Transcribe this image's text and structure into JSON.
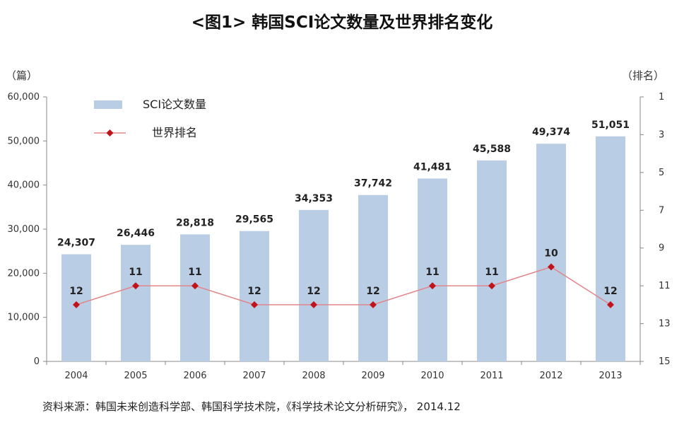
{
  "chart_data": {
    "type": "bar",
    "title": "<图1> 韩国SCI论文数量及世界排名变化",
    "y_left_unit": "（篇）",
    "y_right_unit": "（排名）",
    "categories": [
      "2004",
      "2005",
      "2006",
      "2007",
      "2008",
      "2009",
      "2010",
      "2011",
      "2012",
      "2013"
    ],
    "series": [
      {
        "name": "SCI论文数量",
        "type": "bar",
        "axis": "left",
        "values": [
          24307,
          26446,
          28818,
          29565,
          34353,
          37742,
          41481,
          45588,
          49374,
          51051
        ],
        "labels": [
          "24,307",
          "26,446",
          "28,818",
          "29,565",
          "34,353",
          "37,742",
          "41,481",
          "45,588",
          "49,374",
          "51,051"
        ],
        "color": "#b9cde5"
      },
      {
        "name": "世界排名",
        "type": "line",
        "axis": "right",
        "values": [
          12,
          11,
          11,
          12,
          12,
          12,
          11,
          11,
          10,
          12
        ],
        "labels": [
          "12",
          "11",
          "11",
          "12",
          "12",
          "12",
          "11",
          "11",
          "10",
          "12"
        ],
        "line_color": "#e0868a",
        "marker_color": "#c0141c"
      }
    ],
    "y_left": {
      "min": 0,
      "max": 60000,
      "ticks": [
        0,
        10000,
        20000,
        30000,
        40000,
        50000,
        60000
      ],
      "tick_labels": [
        "0",
        "10,000",
        "20,000",
        "30,000",
        "40,000",
        "50,000",
        "60,000"
      ]
    },
    "y_right": {
      "min": 1,
      "max": 15,
      "inverted": true,
      "ticks": [
        1,
        3,
        5,
        7,
        9,
        11,
        13,
        15
      ],
      "tick_labels": [
        "1",
        "3",
        "5",
        "7",
        "9",
        "11",
        "13",
        "15"
      ]
    },
    "grid": false,
    "legend_position": "top-left"
  },
  "source_text": "资料来源：韩国未来创造科学部、韩国科学技术院，《科学技术论文分析研究》， 2014.12"
}
